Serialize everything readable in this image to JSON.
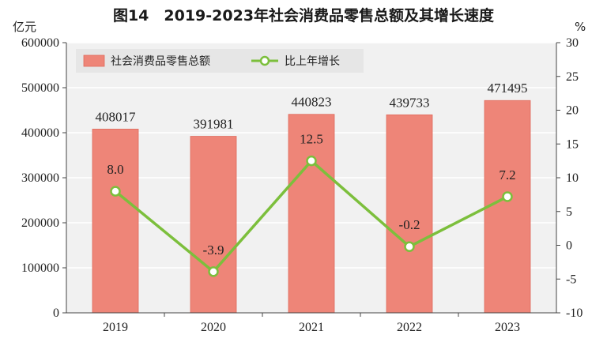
{
  "title": "图14　2019-2023年社会消费品零售总额及其增长速度",
  "y_left_unit": "亿元",
  "y_right_unit": "%",
  "colors": {
    "bar": "#ee8578",
    "bar_stroke": "#e06a5c",
    "line": "#7cbf3c",
    "marker_fill": "#ffffff",
    "legend_bg": "#e6e6e6",
    "plot_bg": "#f1f1f1",
    "grid": "#ffffff"
  },
  "chart_data": {
    "type": "bar",
    "title": "图14　2019-2023年社会消费品零售总额及其增长速度",
    "categories": [
      "2019",
      "2020",
      "2021",
      "2022",
      "2023"
    ],
    "series": [
      {
        "name": "社会消费品零售总额",
        "type": "bar",
        "axis": "left",
        "values": [
          408017,
          391981,
          440823,
          439733,
          471495
        ]
      },
      {
        "name": "比上年增长",
        "type": "line",
        "axis": "right",
        "values": [
          8.0,
          -3.9,
          12.5,
          -0.2,
          7.2
        ]
      }
    ],
    "bar_labels": [
      "408017",
      "391981",
      "440823",
      "439733",
      "471495"
    ],
    "line_labels": [
      "8.0",
      "-3.9",
      "12.5",
      "-0.2",
      "7.2"
    ],
    "y_left": {
      "label": "亿元",
      "lim": [
        0,
        600000
      ],
      "ticks": [
        "0",
        "100000",
        "200000",
        "300000",
        "400000",
        "500000",
        "600000"
      ]
    },
    "y_right": {
      "label": "%",
      "lim": [
        -10,
        30
      ],
      "ticks": [
        "-10",
        "-5",
        "0",
        "5",
        "10",
        "15",
        "20",
        "25",
        "30"
      ]
    },
    "legend": {
      "position": "top-left",
      "entries": [
        "社会消费品零售总额",
        "比上年增长"
      ]
    },
    "grid": true
  }
}
